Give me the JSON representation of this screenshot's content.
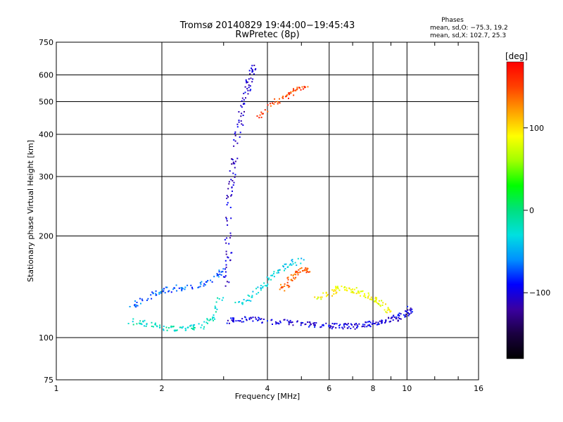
{
  "chart_data": {
    "type": "scatter",
    "title": "Tromsø 20140829 19:44:00−19:45:43",
    "subtitle": "RwPretec (8p)",
    "xlabel": "Frequency [MHz]",
    "ylabel": "Stationary phase Virtual Height [km]",
    "x_scale": "log",
    "y_scale": "log",
    "xlim": [
      1,
      16
    ],
    "ylim": [
      75,
      750
    ],
    "grid": true,
    "x_ticks": [
      1,
      2,
      4,
      6,
      8,
      10,
      16
    ],
    "x_tick_labels": [
      "1",
      "2",
      "4",
      "6",
      "8",
      "10",
      "16"
    ],
    "y_ticks": [
      75,
      100,
      200,
      300,
      400,
      500,
      600,
      750
    ],
    "y_tick_labels": [
      "75",
      "100",
      "200",
      "300",
      "400",
      "500",
      "600",
      "750"
    ],
    "phase_box": {
      "title": "Phases",
      "line1": "mean, sd,O: −75.3, 19.2",
      "line2": "mean, sd,X: 102.7, 25.3"
    },
    "colorbar": {
      "label": "[deg]",
      "range": [
        -180,
        180
      ],
      "ticks": [
        100,
        0,
        -100
      ],
      "tick_labels": [
        "100",
        "0",
        "−100"
      ],
      "colors": [
        "#000000",
        "#1a0040",
        "#3a00a0",
        "#0000ff",
        "#0090ff",
        "#00e0e0",
        "#00e080",
        "#00ff00",
        "#a0ff00",
        "#ffff00",
        "#ffa000",
        "#ff4000",
        "#ff0000"
      ]
    },
    "traces": [
      {
        "x": [
          3.1,
          3.3,
          3.6,
          4.0,
          4.5,
          5.0,
          5.5,
          6.0,
          6.5,
          7.0,
          7.5,
          8.0,
          8.5,
          9.0,
          9.5,
          10.0,
          10.3
        ],
        "y": [
          112,
          113,
          113,
          112,
          111,
          110,
          109,
          108,
          108,
          108,
          109,
          110,
          111,
          113,
          115,
          118,
          122
        ],
        "phase": -100
      },
      {
        "x": [
          3.05,
          3.1,
          3.1,
          3.15,
          3.2,
          3.3,
          3.4,
          3.5,
          3.6,
          3.7
        ],
        "y": [
          140,
          170,
          220,
          280,
          330,
          400,
          470,
          540,
          600,
          630
        ],
        "phase": -105
      },
      {
        "x": [
          1.6,
          1.8,
          2.0,
          2.2,
          2.4,
          2.6,
          2.8,
          2.95
        ],
        "y": [
          112,
          110,
          107,
          106,
          107,
          108,
          115,
          130
        ],
        "phase": -20
      },
      {
        "x": [
          1.6,
          1.8,
          2.0,
          2.2,
          2.5,
          2.8,
          3.0
        ],
        "y": [
          122,
          130,
          138,
          140,
          142,
          148,
          160
        ],
        "phase": -70
      },
      {
        "x": [
          3.3,
          3.6,
          3.9,
          4.2,
          4.6,
          5.0
        ],
        "y": [
          125,
          132,
          142,
          155,
          165,
          170
        ],
        "phase": -35
      },
      {
        "x": [
          4.4,
          4.6,
          4.8,
          5.0,
          5.3
        ],
        "y": [
          140,
          145,
          155,
          160,
          158
        ],
        "phase": 140
      },
      {
        "x": [
          5.5,
          6.0,
          6.5,
          7.0,
          7.5,
          8.0,
          8.5,
          9.0
        ],
        "y": [
          130,
          135,
          140,
          138,
          135,
          130,
          125,
          120
        ],
        "phase": 90
      },
      {
        "x": [
          3.8,
          4.2,
          4.5,
          4.8,
          5.2
        ],
        "y": [
          450,
          500,
          520,
          540,
          560
        ],
        "phase": 150
      }
    ]
  }
}
